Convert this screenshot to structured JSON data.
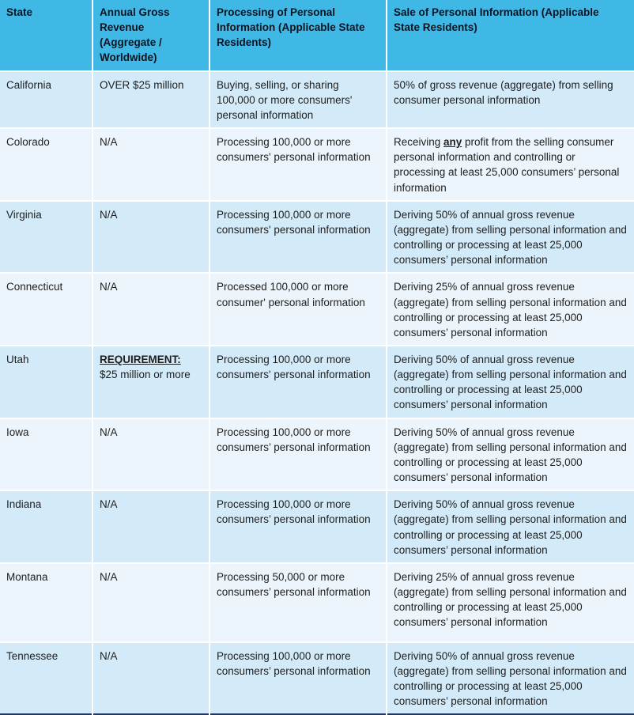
{
  "colors": {
    "header_bg": "#3FB8E6",
    "header_text": "#0d1320",
    "body_text": "#1f1f1f",
    "row_odd": "#D3EAF8",
    "row_even": "#EBF5FB",
    "bottom_border": "#1F3864"
  },
  "table": {
    "columns": [
      {
        "label": "State"
      },
      {
        "label": "Annual Gross Revenue (Aggregate / Worldwide)"
      },
      {
        "label": "Processing of Personal Information (Applicable State Residents)"
      },
      {
        "label": "Sale of Personal Information (Applicable State Residents)"
      }
    ],
    "rows": [
      {
        "state": "California",
        "revenue": "OVER $25 million",
        "processing": "Buying, selling, or sharing 100,000 or more consumers' personal information",
        "sale": "50% of gross revenue (aggregate) from selling consumer personal information"
      },
      {
        "state": "Colorado",
        "revenue": "N/A",
        "processing": "Processing 100,000 or more consumers' personal information",
        "sale_pre": "Receiving ",
        "sale_em": "any",
        "sale_post": " profit from the selling consumer personal information and controlling or processing at least 25,000 consumers’ personal information"
      },
      {
        "state": "Virginia",
        "revenue": "N/A",
        "processing": "Processing 100,000 or more consumers' personal information",
        "sale": "Deriving 50% of annual gross revenue (aggregate) from selling personal information and controlling or processing at least 25,000 consumers’ personal information"
      },
      {
        "state": "Connecticut",
        "revenue": "N/A",
        "processing": "Processed 100,000 or more consumer' personal information",
        "sale": "Deriving 25% of annual gross revenue (aggregate) from selling personal information and controlling or processing at least 25,000 consumers’ personal information"
      },
      {
        "state": "Utah",
        "revenue_em": "REQUIREMENT:",
        "revenue_rest": " $25 million or more",
        "processing": "Processing 100,000 or more consumers' personal information",
        "sale": "Deriving 50% of annual gross revenue (aggregate) from selling personal information and controlling or processing at least 25,000 consumers’ personal information"
      },
      {
        "state": "Iowa",
        "revenue": "N/A",
        "processing": "Processing 100,000 or more consumers’ personal information",
        "sale": "Deriving 50% of annual gross revenue (aggregate) from selling personal information and controlling or processing at least 25,000 consumers’ personal information"
      },
      {
        "state": "Indiana",
        "revenue": "N/A",
        "processing": "Processing 100,000 or more consumers’ personal information",
        "sale": "Deriving 50% of annual gross revenue (aggregate) from selling personal information and controlling or processing at least 25,000 consumers’ personal information"
      },
      {
        "state": "Montana",
        "revenue": "N/A",
        "processing": "Processing 50,000 or more consumers’ personal information",
        "sale": "Deriving 25% of annual gross revenue (aggregate) from selling personal information and controlling or processing at least 25,000 consumers’ personal information"
      },
      {
        "state": "Tennessee",
        "revenue": "N/A",
        "processing": "Processing 100,000 or more consumers’ personal information",
        "sale": "Deriving 50% of annual gross revenue (aggregate) from selling personal information and controlling or processing at least 25,000 consumers’ personal information"
      }
    ]
  }
}
